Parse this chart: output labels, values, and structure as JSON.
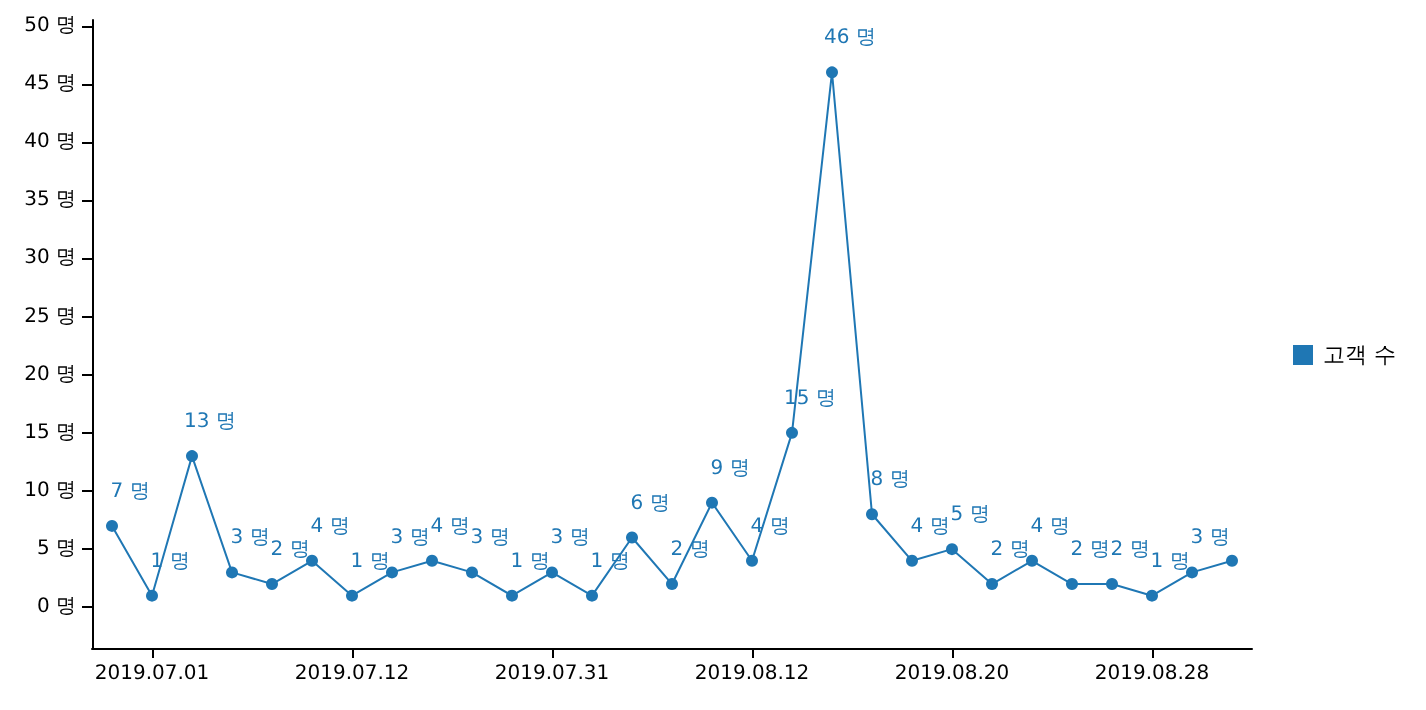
{
  "chart_data": {
    "type": "line",
    "categories": [
      null,
      "2019.07.01",
      null,
      null,
      null,
      null,
      "2019.07.12",
      null,
      null,
      null,
      null,
      "2019.07.31",
      null,
      null,
      null,
      null,
      "2019.08.12",
      null,
      null,
      null,
      null,
      "2019.08.20",
      null,
      null,
      null,
      null,
      "2019.08.28",
      null,
      null
    ],
    "series": [
      {
        "name": "고객 수",
        "color": "#1f77b4",
        "values": [
          7,
          1,
          13,
          3,
          2,
          4,
          1,
          3,
          4,
          3,
          1,
          3,
          1,
          6,
          2,
          9,
          4,
          15,
          46,
          8,
          4,
          5,
          2,
          4,
          2,
          2,
          1,
          3,
          4
        ],
        "value_labels": [
          "7 명",
          "1 명",
          "13 명",
          "3 명",
          "2 명",
          "4 명",
          "1 명",
          "3 명",
          "4 명",
          "3 명",
          "1 명",
          "3 명",
          "1 명",
          "6 명",
          "2 명",
          "9 명",
          "4 명",
          "15 명",
          "46 명",
          "8 명",
          "4 명",
          "5 명",
          "2 명",
          "4 명",
          "2 명",
          "2 명",
          "1 명",
          "3 명",
          null
        ]
      }
    ],
    "ylim": [
      -3.5,
      50.5
    ],
    "yticks": [
      {
        "value": 0,
        "label": "0 명"
      },
      {
        "value": 5,
        "label": "5 명"
      },
      {
        "value": 10,
        "label": "10 명"
      },
      {
        "value": 15,
        "label": "15 명"
      },
      {
        "value": 20,
        "label": "20 명"
      },
      {
        "value": 25,
        "label": "25 명"
      },
      {
        "value": 30,
        "label": "30 명"
      },
      {
        "value": 35,
        "label": "35 명"
      },
      {
        "value": 40,
        "label": "40 명"
      },
      {
        "value": 45,
        "label": "45 명"
      },
      {
        "value": 50,
        "label": "50 명"
      }
    ],
    "legend": "right",
    "marker": "circle",
    "grid": false,
    "line_style": "solid"
  }
}
